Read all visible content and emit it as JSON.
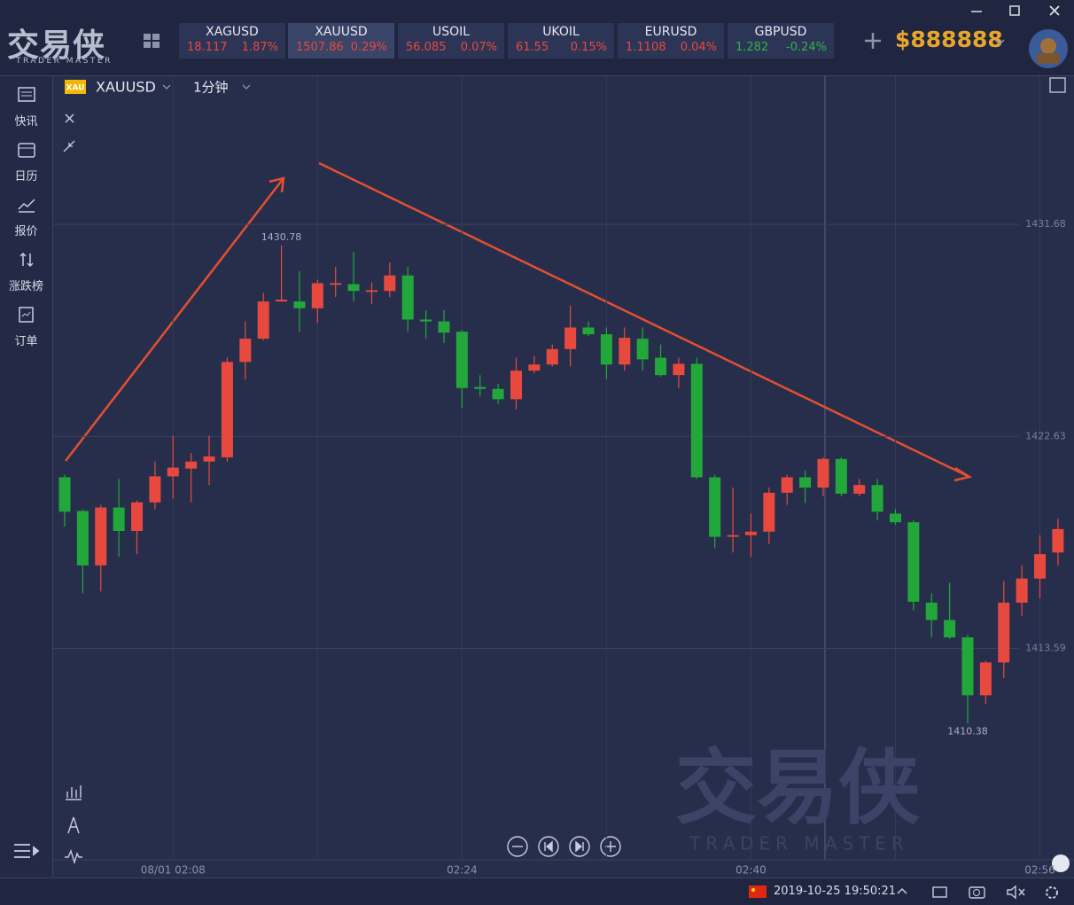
{
  "app": {
    "logo": "交易侠",
    "logo_sub": "TRADER MASTER",
    "balance": "$888888",
    "tickers": [
      {
        "symbol": "XAGUSD",
        "price": "18.117",
        "change": "1.87%"
      },
      {
        "symbol": "XAUUSD",
        "price": "1507.86",
        "change": "0.29%"
      },
      {
        "symbol": "USOIL",
        "price": "56.085",
        "change": "0.07%"
      },
      {
        "symbol": "UKOIL",
        "price": "61.55",
        "change": "0.15%"
      },
      {
        "symbol": "EURUSD",
        "price": "1.1108",
        "change": "0.04%"
      },
      {
        "symbol": "GBPUSD",
        "price": "1.282",
        "change": "-0.24%"
      }
    ],
    "sidebar": [
      "快讯",
      "日历",
      "报价",
      "涨跌榜",
      "订单"
    ],
    "chart_header": {
      "badge": "XAU",
      "symbol": "XAUUSD",
      "interval": "1分钟"
    },
    "watermark": "交易侠",
    "watermark_sub": "TRADER MASTER",
    "status_time": "2019-10-25 19:50:21"
  },
  "chart_data": {
    "type": "candlestick",
    "up_color": "#e8493f",
    "down_color": "#22a83a",
    "ylim": [
      1404.57,
      1438.0
    ],
    "yticks": [
      1413.59,
      1422.63,
      1431.68
    ],
    "grid": true,
    "categories": [
      null,
      null,
      null,
      null,
      null,
      null,
      "08/01 02:08",
      null,
      null,
      null,
      null,
      null,
      null,
      null,
      null,
      null,
      null,
      null,
      null,
      null,
      null,
      null,
      "02:24",
      null,
      null,
      null,
      null,
      null,
      null,
      null,
      null,
      null,
      null,
      null,
      null,
      null,
      null,
      null,
      "02:40",
      null,
      null,
      null,
      null,
      null,
      null,
      null,
      null,
      null,
      null,
      null,
      null,
      null,
      null,
      null,
      "02:56",
      null
    ],
    "open": [
      1420.89,
      1419.45,
      1417.13,
      1419.6,
      1418.6,
      1419.82,
      1420.93,
      1421.26,
      1421.56,
      1421.74,
      1425.81,
      1426.8,
      1428.39,
      1428.39,
      1428.1,
      1429.1,
      1429.13,
      1428.8,
      1428.84,
      1429.5,
      1427.62,
      1427.54,
      1427.1,
      1424.74,
      1424.66,
      1424.22,
      1425.44,
      1425.7,
      1426.36,
      1427.28,
      1426.99,
      1425.7,
      1426.8,
      1425.99,
      1425.25,
      1425.73,
      1420.89,
      1418.35,
      1418.42,
      1418.57,
      1420.23,
      1420.89,
      1420.45,
      1421.67,
      1420.19,
      1420.56,
      1419.34,
      1418.97,
      1415.54,
      1414.8,
      1414.06,
      1411.59,
      1412.99,
      1415.54,
      1416.57,
      1417.68
    ],
    "high": [
      1421.0,
      1419.53,
      1419.71,
      1420.82,
      1419.9,
      1421.56,
      1422.67,
      1421.93,
      1422.67,
      1425.99,
      1427.54,
      1428.76,
      1430.78,
      1429.69,
      1429.32,
      1429.87,
      1430.5,
      1429.21,
      1430.06,
      1429.87,
      1428.02,
      1428.02,
      1427.17,
      1425.25,
      1424.88,
      1425.99,
      1426.07,
      1426.55,
      1428.21,
      1427.54,
      1427.28,
      1427.28,
      1427.28,
      1426.55,
      1425.99,
      1425.99,
      1421.0,
      1420.45,
      1419.34,
      1420.45,
      1421.0,
      1421.19,
      1421.74,
      1421.74,
      1420.82,
      1420.82,
      1419.53,
      1419.05,
      1415.94,
      1416.39,
      1414.17,
      1413.06,
      1416.46,
      1417.13,
      1418.42,
      1419.12
    ],
    "low": [
      1418.79,
      1415.94,
      1416.02,
      1417.5,
      1417.61,
      1419.53,
      1419.97,
      1419.82,
      1420.56,
      1421.56,
      1425.07,
      1426.73,
      1428.39,
      1427.1,
      1427.47,
      1428.58,
      1428.39,
      1428.28,
      1428.58,
      1427.1,
      1426.8,
      1426.62,
      1423.85,
      1424.33,
      1424.03,
      1423.78,
      1425.33,
      1425.62,
      1425.62,
      1426.92,
      1425.07,
      1425.44,
      1425.44,
      1425.18,
      1424.7,
      1420.82,
      1417.87,
      1417.68,
      1417.5,
      1418.05,
      1419.71,
      1419.79,
      1420.08,
      1420.08,
      1420.08,
      1419.05,
      1418.86,
      1415.21,
      1414.06,
      1413.99,
      1410.38,
      1411.22,
      1412.32,
      1414.98,
      1415.72,
      1417.13
    ],
    "close": [
      1419.42,
      1417.13,
      1419.6,
      1418.6,
      1419.82,
      1420.93,
      1421.3,
      1421.56,
      1421.78,
      1425.81,
      1426.8,
      1428.39,
      1428.47,
      1428.1,
      1429.17,
      1429.17,
      1428.84,
      1428.87,
      1429.5,
      1427.62,
      1427.54,
      1427.06,
      1424.7,
      1424.66,
      1424.22,
      1425.44,
      1425.7,
      1426.36,
      1427.28,
      1426.99,
      1425.7,
      1426.84,
      1425.92,
      1425.25,
      1425.73,
      1420.89,
      1418.35,
      1418.42,
      1418.57,
      1420.23,
      1420.89,
      1420.45,
      1421.67,
      1420.19,
      1420.56,
      1419.42,
      1418.97,
      1415.58,
      1414.8,
      1414.06,
      1411.59,
      1412.99,
      1415.54,
      1416.57,
      1417.61,
      1418.68
    ],
    "annotations": [
      {
        "index": 12,
        "at": "high"
      },
      {
        "index": 50,
        "at": "low"
      }
    ]
  }
}
